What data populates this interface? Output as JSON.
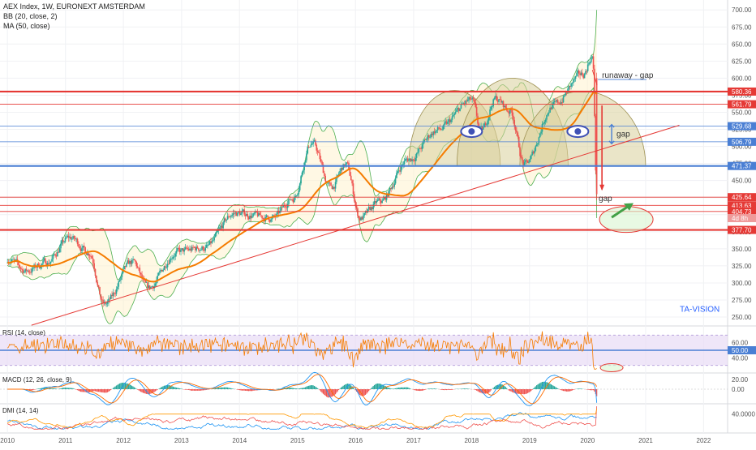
{
  "header": {
    "title": "AEX Index, 1W, EURONEXT AMSTERDAM",
    "bb_label": "BB (20, close, 2)",
    "ma_label": "MA (50, close)"
  },
  "watermark": "TA-VISION",
  "annotations": {
    "runaway_gap": "runaway - gap",
    "gap_upper": "gap",
    "gap_lower": "gap",
    "countdown": "4d 8h"
  },
  "colors": {
    "price_up": "#26a69a",
    "price_down": "#ef5350",
    "ma": "#f57c00",
    "bb": "#4caf50",
    "bb_fill": "#fff3cd",
    "red_level": "#e53935",
    "blue_level": "#4a7fd4",
    "rsi": "#f57c00",
    "rsi_band": "#e8dcf5",
    "macd": "#2196f3",
    "signal": "#ff6d00",
    "dmi_plus": "#2196f3",
    "dmi_minus": "#ef5350",
    "adx": "#ff9800",
    "hs_fill": "#d8cf9a",
    "eye": "#3f51b5",
    "arrow_green": "#43a047"
  },
  "panes": {
    "rsi": {
      "label": "RSI (14, close)",
      "ticks": [
        "60.00",
        "50.00",
        "40.00"
      ]
    },
    "macd": {
      "label": "MACD (12, 26, close, 9)",
      "ticks": [
        "20.00",
        "0.00"
      ]
    },
    "dmi": {
      "label": "DMI (14, 14)",
      "ticks": [
        "40.0000"
      ]
    }
  },
  "chart_data": {
    "type": "candlestick",
    "title": "AEX Index, 1W, EURONEXT AMSTERDAM",
    "x_axis": {
      "ticks": [
        "2010",
        "2011",
        "2012",
        "2013",
        "2014",
        "2015",
        "2016",
        "2017",
        "2018",
        "2019",
        "2020",
        "2021",
        "2022"
      ],
      "range": [
        "2010-01",
        "2022-06"
      ]
    },
    "y_axis": {
      "scale": "linear",
      "ylim": [
        237,
        705
      ],
      "ticks": [
        "700.00",
        "675.00",
        "650.00",
        "625.00",
        "600.00",
        "575.00",
        "550.00",
        "525.00",
        "500.00",
        "475.00",
        "450.00",
        "425.00",
        "400.00",
        "375.00",
        "350.00",
        "325.00",
        "300.00",
        "275.00",
        "250.00"
      ]
    },
    "price_anchors": [
      {
        "date": "2010-01",
        "value": 335
      },
      {
        "date": "2010-05",
        "value": 318
      },
      {
        "date": "2010-09",
        "value": 330
      },
      {
        "date": "2011-02",
        "value": 366
      },
      {
        "date": "2011-06",
        "value": 345
      },
      {
        "date": "2011-09",
        "value": 268
      },
      {
        "date": "2012-03",
        "value": 330
      },
      {
        "date": "2012-06",
        "value": 292
      },
      {
        "date": "2012-12",
        "value": 345
      },
      {
        "date": "2013-06",
        "value": 352
      },
      {
        "date": "2013-12",
        "value": 402
      },
      {
        "date": "2014-08",
        "value": 395
      },
      {
        "date": "2014-12",
        "value": 424
      },
      {
        "date": "2015-04",
        "value": 505
      },
      {
        "date": "2015-08",
        "value": 440
      },
      {
        "date": "2015-11",
        "value": 473
      },
      {
        "date": "2016-02",
        "value": 395
      },
      {
        "date": "2016-06",
        "value": 418
      },
      {
        "date": "2016-12",
        "value": 481
      },
      {
        "date": "2017-06",
        "value": 524
      },
      {
        "date": "2018-01",
        "value": 567
      },
      {
        "date": "2018-03",
        "value": 522
      },
      {
        "date": "2018-06",
        "value": 570
      },
      {
        "date": "2018-09",
        "value": 552
      },
      {
        "date": "2018-12",
        "value": 473
      },
      {
        "date": "2019-06",
        "value": 560
      },
      {
        "date": "2019-12",
        "value": 605
      },
      {
        "date": "2020-02",
        "value": 632
      },
      {
        "date": "2020-03",
        "value": 421
      }
    ],
    "series": [
      {
        "name": "MA (50, close)"
      },
      {
        "name": "BB (20, close, 2)"
      }
    ],
    "levels": [
      {
        "value": 580.36,
        "label": "580.36",
        "color": "red"
      },
      {
        "value": 561.79,
        "label": "561.79",
        "color": "red"
      },
      {
        "value": 529.68,
        "label": "529.68",
        "color": "blue"
      },
      {
        "value": 506.79,
        "label": "506.79",
        "color": "blue"
      },
      {
        "value": 471.37,
        "label": "471.37",
        "color": "blue"
      },
      {
        "value": 425.64,
        "label": "425.64",
        "color": "red"
      },
      {
        "value": 413.63,
        "label": "413.63",
        "color": "red"
      },
      {
        "value": 404.73,
        "label": "404.73",
        "color": "red"
      },
      {
        "value": 377.7,
        "label": "377.70",
        "color": "red"
      }
    ],
    "rsi_range": [
      20,
      80
    ],
    "macd_range": [
      -30,
      30
    ],
    "dmi_range": [
      0,
      60
    ]
  }
}
